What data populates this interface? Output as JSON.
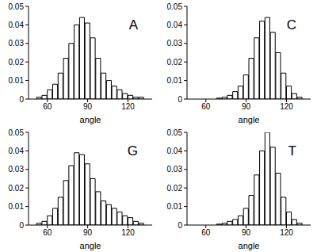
{
  "chart_data": [
    {
      "type": "histogram",
      "title": "A",
      "xlabel": "angle",
      "color": "#ffffff",
      "bins": [
        52,
        56,
        60,
        64,
        68,
        72,
        76,
        80,
        84,
        88,
        92,
        96,
        100,
        104,
        108,
        112,
        116,
        120,
        124,
        128,
        132
      ],
      "values": [
        0.001,
        0.002,
        0.005,
        0.008,
        0.014,
        0.022,
        0.03,
        0.04,
        0.044,
        0.041,
        0.033,
        0.022,
        0.014,
        0.01,
        0.007,
        0.005,
        0.003,
        0.002,
        0.001,
        0.001
      ],
      "xlim": [
        46,
        138
      ],
      "xticks": [
        60,
        90,
        120
      ],
      "ylim": [
        0,
        0.05
      ],
      "yticks": [
        0,
        0.01,
        0.02,
        0.03,
        0.04,
        0.05
      ]
    },
    {
      "type": "histogram",
      "title": "C",
      "xlabel": "angle",
      "color": "#ffffff",
      "bins": [
        52,
        56,
        60,
        64,
        68,
        72,
        76,
        80,
        84,
        88,
        92,
        96,
        100,
        104,
        108,
        112,
        116,
        120,
        124,
        128,
        132
      ],
      "values": [
        0,
        0,
        0,
        0,
        0.0005,
        0.001,
        0.002,
        0.004,
        0.007,
        0.013,
        0.022,
        0.033,
        0.042,
        0.044,
        0.036,
        0.025,
        0.014,
        0.007,
        0.003,
        0.001
      ],
      "xlim": [
        46,
        138
      ],
      "xticks": [
        60,
        90,
        120
      ],
      "ylim": [
        0,
        0.05
      ],
      "yticks": [
        0,
        0.01,
        0.02,
        0.03,
        0.04,
        0.05
      ]
    },
    {
      "type": "histogram",
      "title": "G",
      "xlabel": "angle",
      "color": "#ffffff",
      "bins": [
        52,
        56,
        60,
        64,
        68,
        72,
        76,
        80,
        84,
        88,
        92,
        96,
        100,
        104,
        108,
        112,
        116,
        120,
        124,
        128,
        132
      ],
      "values": [
        0.001,
        0.002,
        0.005,
        0.009,
        0.015,
        0.024,
        0.032,
        0.039,
        0.038,
        0.033,
        0.025,
        0.018,
        0.013,
        0.011,
        0.009,
        0.007,
        0.005,
        0.004,
        0.002,
        0.001
      ],
      "xlim": [
        46,
        138
      ],
      "xticks": [
        60,
        90,
        120
      ],
      "ylim": [
        0,
        0.05
      ],
      "yticks": [
        0,
        0.01,
        0.02,
        0.03,
        0.04,
        0.05
      ]
    },
    {
      "type": "histogram",
      "title": "T",
      "xlabel": "angle",
      "color": "#ffffff",
      "bins": [
        52,
        56,
        60,
        64,
        68,
        72,
        76,
        80,
        84,
        88,
        92,
        96,
        100,
        104,
        108,
        112,
        116,
        120,
        124,
        128,
        132
      ],
      "values": [
        0,
        0,
        0,
        0,
        0.0005,
        0.001,
        0.002,
        0.003,
        0.005,
        0.009,
        0.016,
        0.027,
        0.04,
        0.05,
        0.042,
        0.028,
        0.015,
        0.007,
        0.003,
        0.001
      ],
      "xlim": [
        46,
        138
      ],
      "xticks": [
        60,
        90,
        120
      ],
      "ylim": [
        0,
        0.05
      ],
      "yticks": [
        0,
        0.01,
        0.02,
        0.03,
        0.04,
        0.05
      ]
    }
  ]
}
